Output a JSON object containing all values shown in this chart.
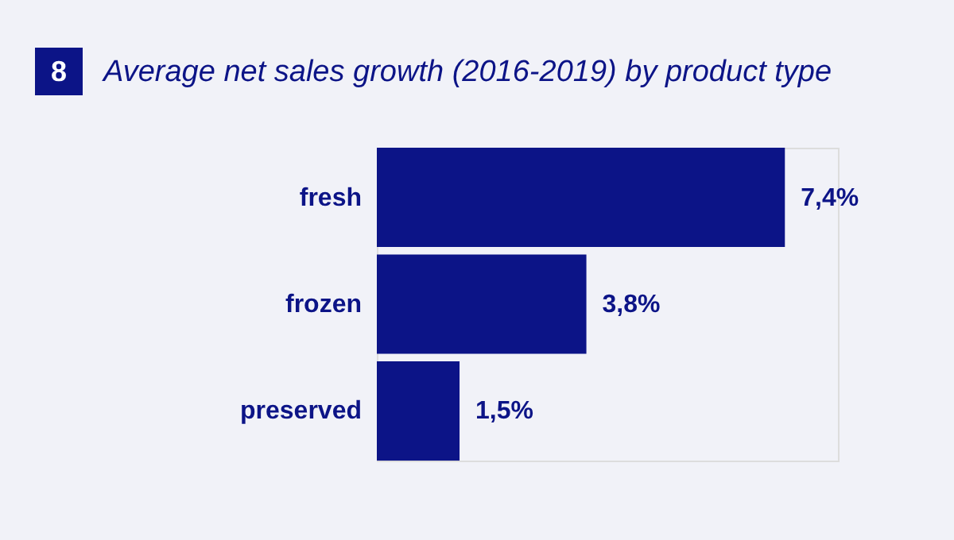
{
  "chart_data": {
    "type": "bar",
    "orientation": "horizontal",
    "title": "Average net sales growth (2016-2019) by product type",
    "annotations": [
      "8"
    ],
    "categories": [
      "fresh",
      "frozen",
      "preserved"
    ],
    "values": [
      7.4,
      3.8,
      1.5
    ],
    "value_labels": [
      "7,4%",
      "3,8%",
      "1,5%"
    ],
    "color": "#0c1487"
  }
}
